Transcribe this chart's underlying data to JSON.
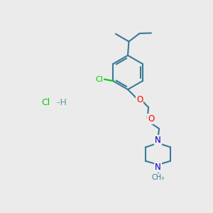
{
  "background_color": "#ebebeb",
  "bond_color": "#3a7a96",
  "bond_width": 1.5,
  "cl_color": "#00cc00",
  "o_color": "#ff0000",
  "n_color": "#0000cc",
  "c_color": "#3a7a96",
  "hcl_cl_color": "#00cc00",
  "hcl_h_color": "#5a9aaa",
  "figsize": [
    3.0,
    3.0
  ],
  "dpi": 100,
  "xlim": [
    0,
    10
  ],
  "ylim": [
    0,
    10
  ]
}
